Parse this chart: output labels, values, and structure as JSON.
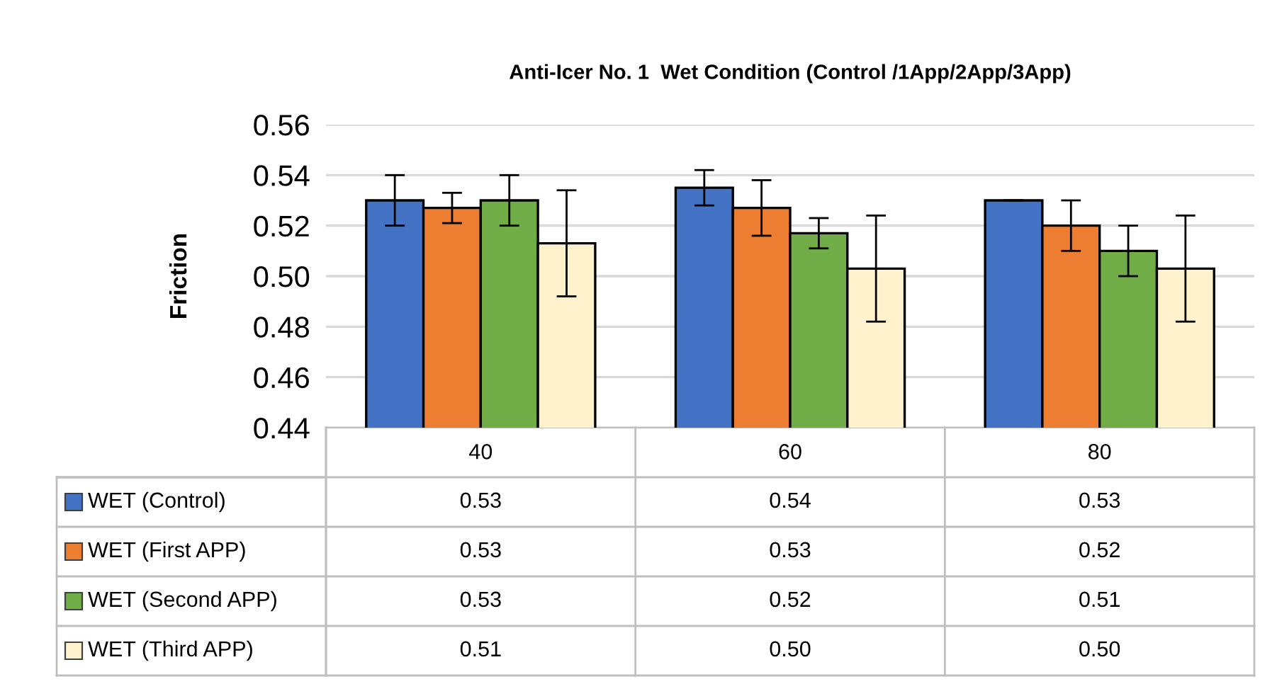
{
  "chart_data": {
    "type": "bar",
    "title": "Anti-Icer No. 1  Wet Condition (Control /1App/2App/3App)",
    "ylabel": "Friction",
    "categories": [
      "40",
      "60",
      "80"
    ],
    "series": [
      {
        "name": "WET (Control)",
        "color": "#4472c4",
        "values": [
          0.53,
          0.535,
          0.53
        ],
        "errors": [
          0.01,
          0.007,
          0
        ],
        "value_labels": [
          "0.53",
          "0.54",
          "0.53"
        ]
      },
      {
        "name": "WET (First APP)",
        "color": "#ed7d31",
        "values": [
          0.527,
          0.527,
          0.52
        ],
        "errors": [
          0.006,
          0.011,
          0.01
        ],
        "value_labels": [
          "0.53",
          "0.53",
          "0.52"
        ]
      },
      {
        "name": "WET (Second APP)",
        "color": "#70ad47",
        "values": [
          0.53,
          0.517,
          0.51
        ],
        "errors": [
          0.01,
          0.006,
          0.01
        ],
        "value_labels": [
          "0.53",
          "0.52",
          "0.51"
        ]
      },
      {
        "name": "WET (Third APP)",
        "color": "#fff2cc",
        "values": [
          0.513,
          0.503,
          0.503
        ],
        "errors": [
          0.021,
          0.021,
          0.021
        ],
        "value_labels": [
          "0.51",
          "0.50",
          "0.50"
        ]
      }
    ],
    "ylim": [
      0.44,
      0.56
    ],
    "yticks": [
      {
        "value": 0.44,
        "label": "0.44"
      },
      {
        "value": 0.46,
        "label": "0.46"
      },
      {
        "value": 0.48,
        "label": "0.48"
      },
      {
        "value": 0.5,
        "label": "0.50"
      },
      {
        "value": 0.52,
        "label": "0.52"
      },
      {
        "value": 0.54,
        "label": "0.54"
      },
      {
        "value": 0.56,
        "label": "0.56"
      }
    ],
    "grid": "y",
    "legend": "bottom"
  }
}
